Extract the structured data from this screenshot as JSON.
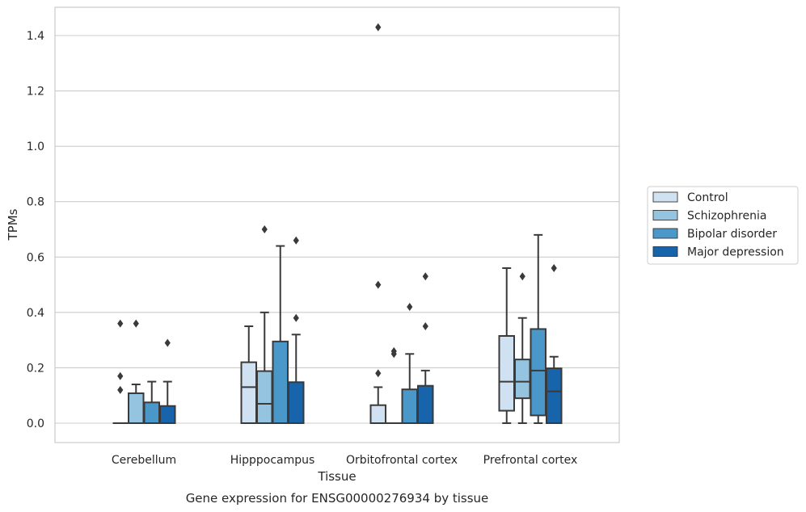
{
  "caption": "Gene expression for ENSG00000276934 by tissue",
  "chart_data": {
    "type": "box",
    "xlabel": "Tissue",
    "ylabel": "TPMs",
    "ylim": [
      -0.07,
      1.5
    ],
    "yticks": [
      0.0,
      0.2,
      0.4,
      0.6,
      0.8,
      1.0,
      1.2,
      1.4
    ],
    "ytick_labels": [
      "0.0",
      "0.2",
      "0.4",
      "0.6",
      "0.8",
      "1.0",
      "1.2",
      "1.4"
    ],
    "grid": "horizontal",
    "legend_position": "right",
    "categories": [
      "Cerebellum",
      "Hipppocampus",
      "Orbitofrontal cortex",
      "Prefrontal cortex"
    ],
    "series": [
      {
        "name": "Control",
        "color": "#d0e1f2",
        "boxes": [
          {
            "whislo": 0.0,
            "q1": 0.0,
            "med": 0.0,
            "q3": 0.0,
            "whishi": 0.0,
            "fliers": [
              0.12,
              0.17,
              0.36
            ]
          },
          {
            "whislo": 0.0,
            "q1": 0.0,
            "med": 0.13,
            "q3": 0.22,
            "whishi": 0.35,
            "fliers": []
          },
          {
            "whislo": 0.0,
            "q1": 0.0,
            "med": 0.0,
            "q3": 0.065,
            "whishi": 0.13,
            "fliers": [
              0.18,
              0.5,
              1.43
            ]
          },
          {
            "whislo": 0.0,
            "q1": 0.045,
            "med": 0.15,
            "q3": 0.315,
            "whishi": 0.56,
            "fliers": []
          }
        ]
      },
      {
        "name": "Schizophrenia",
        "color": "#94c4df",
        "boxes": [
          {
            "whislo": 0.0,
            "q1": 0.0,
            "med": 0.0,
            "q3": 0.108,
            "whishi": 0.14,
            "fliers": [
              0.36
            ]
          },
          {
            "whislo": 0.0,
            "q1": 0.0,
            "med": 0.07,
            "q3": 0.188,
            "whishi": 0.4,
            "fliers": [
              0.7
            ]
          },
          {
            "whislo": 0.0,
            "q1": 0.0,
            "med": 0.0,
            "q3": 0.0,
            "whishi": 0.0,
            "fliers": [
              0.25,
              0.26
            ]
          },
          {
            "whislo": 0.0,
            "q1": 0.09,
            "med": 0.15,
            "q3": 0.23,
            "whishi": 0.38,
            "fliers": [
              0.53
            ]
          }
        ]
      },
      {
        "name": "Bipolar disorder",
        "color": "#4a98c9",
        "boxes": [
          {
            "whislo": 0.0,
            "q1": 0.0,
            "med": 0.0,
            "q3": 0.075,
            "whishi": 0.15,
            "fliers": []
          },
          {
            "whislo": 0.0,
            "q1": 0.0,
            "med": 0.0,
            "q3": 0.295,
            "whishi": 0.64,
            "fliers": []
          },
          {
            "whislo": 0.0,
            "q1": 0.0,
            "med": 0.0,
            "q3": 0.122,
            "whishi": 0.25,
            "fliers": [
              0.42
            ]
          },
          {
            "whislo": 0.0,
            "q1": 0.028,
            "med": 0.19,
            "q3": 0.34,
            "whishi": 0.68,
            "fliers": []
          }
        ]
      },
      {
        "name": "Major depression",
        "color": "#1764ab",
        "boxes": [
          {
            "whislo": 0.0,
            "q1": 0.0,
            "med": 0.0,
            "q3": 0.062,
            "whishi": 0.15,
            "fliers": [
              0.29
            ]
          },
          {
            "whislo": 0.0,
            "q1": 0.0,
            "med": 0.0,
            "q3": 0.148,
            "whishi": 0.32,
            "fliers": [
              0.38,
              0.66
            ]
          },
          {
            "whislo": 0.0,
            "q1": 0.0,
            "med": 0.0,
            "q3": 0.135,
            "whishi": 0.19,
            "fliers": [
              0.35,
              0.53
            ]
          },
          {
            "whislo": 0.0,
            "q1": 0.0,
            "med": 0.115,
            "q3": 0.198,
            "whishi": 0.24,
            "fliers": [
              0.56
            ]
          }
        ]
      }
    ]
  }
}
